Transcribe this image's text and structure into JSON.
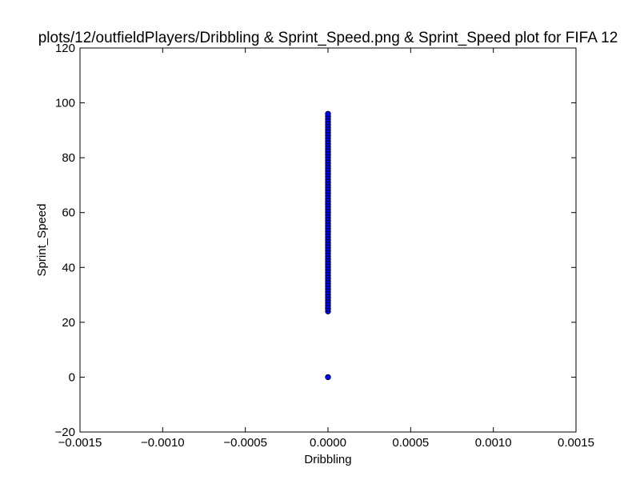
{
  "chart_data": {
    "type": "scatter",
    "title": "plots/12/outfieldPlayers/Dribbling & Sprint_Speed.png & Sprint_Speed plot for FIFA 12",
    "xlabel": "Dribbling",
    "ylabel": "Sprint_Speed",
    "xlim": [
      -0.0015,
      0.0015
    ],
    "ylim": [
      -20,
      120
    ],
    "grid": false,
    "colors": {
      "marker_fill": "#0000ff",
      "marker_edge": "#000000"
    },
    "x_ticks": [
      {
        "value": -0.0015,
        "label": "−0.0015"
      },
      {
        "value": -0.001,
        "label": "−0.0010"
      },
      {
        "value": -0.0005,
        "label": "−0.0005"
      },
      {
        "value": 0,
        "label": "0.0000"
      },
      {
        "value": 0.0005,
        "label": "0.0005"
      },
      {
        "value": 0.001,
        "label": "0.0010"
      },
      {
        "value": 0.0015,
        "label": "0.0015"
      }
    ],
    "y_ticks": [
      {
        "value": -20,
        "label": "−20"
      },
      {
        "value": 0,
        "label": "0"
      },
      {
        "value": 20,
        "label": "20"
      },
      {
        "value": 40,
        "label": "40"
      },
      {
        "value": 60,
        "label": "60"
      },
      {
        "value": 80,
        "label": "80"
      },
      {
        "value": 100,
        "label": "100"
      },
      {
        "value": 120,
        "label": "120"
      }
    ],
    "points": {
      "x": [
        0,
        0,
        0,
        0,
        0,
        0,
        0,
        0,
        0,
        0,
        0,
        0,
        0,
        0,
        0,
        0,
        0,
        0,
        0,
        0,
        0,
        0,
        0,
        0,
        0,
        0,
        0,
        0,
        0,
        0,
        0,
        0,
        0,
        0,
        0,
        0,
        0,
        0,
        0,
        0,
        0,
        0,
        0,
        0,
        0,
        0,
        0,
        0,
        0,
        0,
        0,
        0,
        0,
        0,
        0,
        0,
        0,
        0,
        0,
        0,
        0,
        0,
        0,
        0,
        0,
        0,
        0,
        0,
        0,
        0,
        0,
        0,
        0,
        0
      ],
      "y": [
        0,
        24,
        25,
        26,
        27,
        28,
        29,
        30,
        31,
        32,
        33,
        34,
        35,
        36,
        37,
        38,
        39,
        40,
        41,
        42,
        43,
        44,
        45,
        46,
        47,
        48,
        49,
        50,
        51,
        52,
        53,
        54,
        55,
        56,
        57,
        58,
        59,
        60,
        61,
        62,
        63,
        64,
        65,
        66,
        67,
        68,
        69,
        70,
        71,
        72,
        73,
        74,
        75,
        76,
        77,
        78,
        79,
        80,
        81,
        82,
        83,
        84,
        85,
        86,
        87,
        88,
        89,
        90,
        91,
        92,
        93,
        94,
        95,
        96
      ]
    }
  }
}
